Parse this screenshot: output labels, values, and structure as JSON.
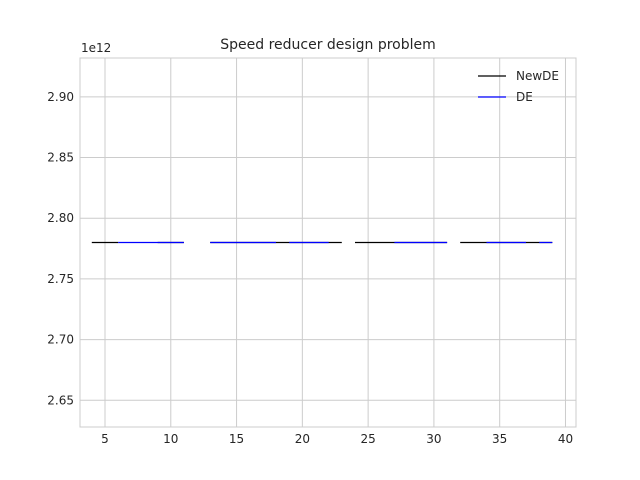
{
  "chart_data": {
    "type": "line",
    "title": "Speed reducer design problem",
    "xlabel": "",
    "ylabel": "",
    "y_offset_label": "1e12",
    "x_ticks": [
      5,
      10,
      15,
      20,
      25,
      30,
      35,
      40
    ],
    "y_ticks": [
      2.65,
      2.7,
      2.75,
      2.8,
      2.85,
      2.9
    ],
    "y_tick_labels": [
      "2.65",
      "2.70",
      "2.75",
      "2.80",
      "2.85",
      "2.90"
    ],
    "xlim": [
      3.1,
      40.8
    ],
    "ylim": [
      2.628,
      2.932
    ],
    "grid": true,
    "legend_position": "top-right",
    "series": [
      {
        "name": "NewDE",
        "color": "#000000",
        "segments": [
          {
            "x": [
              4,
              6
            ],
            "y": [
              2.78,
              2.78
            ]
          },
          {
            "x": [
              9,
              11
            ],
            "y": [
              2.78,
              2.78
            ]
          },
          {
            "x": [
              13,
              23
            ],
            "y": [
              2.78,
              2.78
            ]
          },
          {
            "x": [
              24,
              31
            ],
            "y": [
              2.78,
              2.78
            ]
          },
          {
            "x": [
              32,
              39
            ],
            "y": [
              2.78,
              2.78
            ]
          }
        ]
      },
      {
        "name": "DE",
        "color": "#0000ff",
        "segments": [
          {
            "x": [
              6,
              11
            ],
            "y": [
              2.78,
              2.78
            ]
          },
          {
            "x": [
              13,
              18
            ],
            "y": [
              2.78,
              2.78
            ]
          },
          {
            "x": [
              19,
              22
            ],
            "y": [
              2.78,
              2.78
            ]
          },
          {
            "x": [
              27,
              31
            ],
            "y": [
              2.78,
              2.78
            ]
          },
          {
            "x": [
              34,
              37
            ],
            "y": [
              2.78,
              2.78
            ]
          },
          {
            "x": [
              38,
              39
            ],
            "y": [
              2.78,
              2.78
            ]
          }
        ]
      }
    ]
  }
}
